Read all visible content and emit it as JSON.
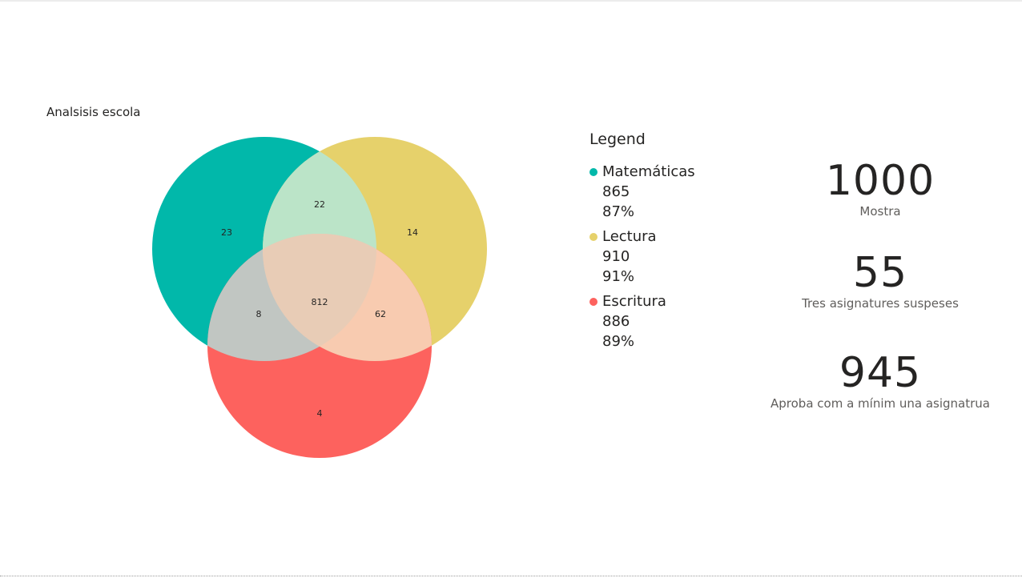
{
  "visual_title": "Analsisis escola",
  "legend": {
    "title": "Legend",
    "items": [
      {
        "name": "Matemáticas",
        "value": "865",
        "percent": "87%",
        "color": "#01B8AA"
      },
      {
        "name": "Lectura",
        "value": "910",
        "percent": "91%",
        "color": "#E6D16B"
      },
      {
        "name": "Escritura",
        "value": "886",
        "percent": "89%",
        "color": "#FD625E"
      }
    ]
  },
  "chart_data": {
    "type": "venn",
    "sets": [
      "Matemáticas",
      "Lectura",
      "Escritura"
    ],
    "regions": [
      {
        "sets": [
          "Matemáticas"
        ],
        "value": 23
      },
      {
        "sets": [
          "Lectura"
        ],
        "value": 14
      },
      {
        "sets": [
          "Escritura"
        ],
        "value": 4
      },
      {
        "sets": [
          "Matemáticas",
          "Lectura"
        ],
        "value": 22
      },
      {
        "sets": [
          "Matemáticas",
          "Escritura"
        ],
        "value": 8
      },
      {
        "sets": [
          "Lectura",
          "Escritura"
        ],
        "value": 62
      },
      {
        "sets": [
          "Matemáticas",
          "Lectura",
          "Escritura"
        ],
        "value": 812
      }
    ],
    "colors": {
      "mat": "#01B8AA",
      "lec": "#E6D16B",
      "esc": "#FD625E",
      "mat_lec": "#BBE4C8",
      "mat_esc": "#C1C6C2",
      "lec_esc": "#F8CBB0",
      "all": "#E8CCB6"
    }
  },
  "cards": [
    {
      "value": "1000",
      "label": "Mostra"
    },
    {
      "value": "55",
      "label": "Tres asignatures suspeses"
    },
    {
      "value": "945",
      "label": "Aproba com a mínim una asignatrua"
    }
  ]
}
